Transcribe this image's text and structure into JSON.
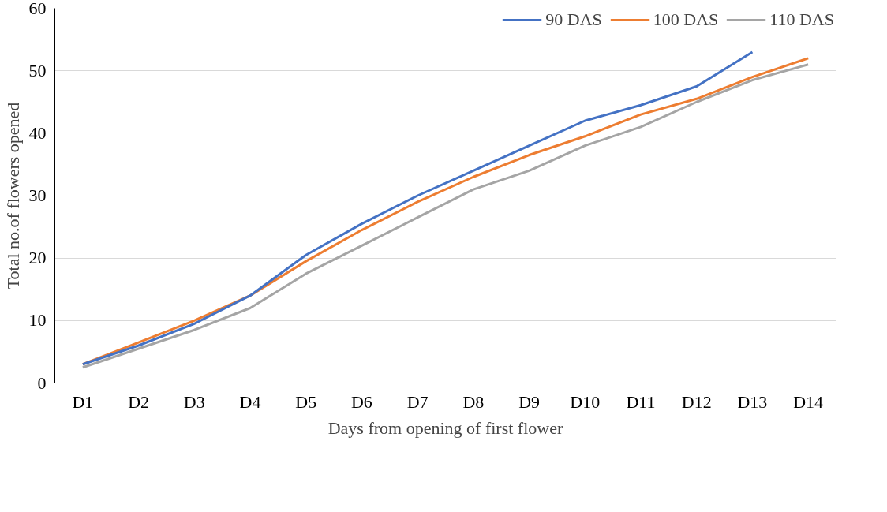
{
  "chart_data": {
    "type": "line",
    "xlabel": "Days from opening of first flower",
    "ylabel": "Total no.of flowers opened",
    "categories": [
      "D1",
      "D2",
      "D3",
      "D4",
      "D5",
      "D6",
      "D7",
      "D8",
      "D9",
      "D10",
      "D11",
      "D12",
      "D13",
      "D14"
    ],
    "series": [
      {
        "name": "90 DAS",
        "color": "#4472c4",
        "values": [
          3,
          6,
          9.5,
          14,
          20.5,
          25.5,
          30,
          34,
          38,
          42,
          44.5,
          47.5,
          53,
          null
        ]
      },
      {
        "name": "100 DAS",
        "color": "#ed7d31",
        "values": [
          3,
          6.5,
          10,
          14,
          19.5,
          24.5,
          29,
          33,
          36.5,
          39.5,
          43,
          45.5,
          49,
          52
        ]
      },
      {
        "name": "110 DAS",
        "color": "#a5a5a5",
        "values": [
          2.5,
          5.5,
          8.5,
          12,
          17.5,
          22,
          26.5,
          31,
          34,
          38,
          41,
          45,
          48.5,
          51
        ]
      }
    ],
    "ylim": [
      0,
      60
    ],
    "yticks": [
      0,
      10,
      20,
      30,
      40,
      50,
      60
    ],
    "grid": "y",
    "legend": "top right",
    "marker": "none",
    "line_style": "solid"
  }
}
